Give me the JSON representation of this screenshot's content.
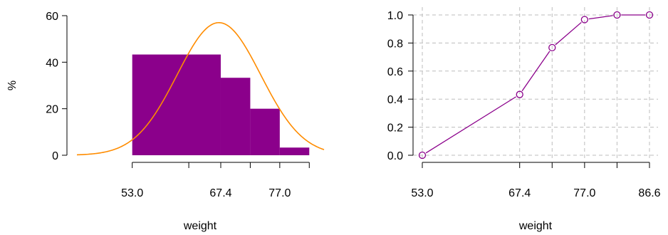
{
  "chart_data": [
    {
      "type": "histogram",
      "xlabel": "weight",
      "ylabel": "%",
      "ylim": [
        0,
        60
      ],
      "yticks": [
        0,
        20,
        40,
        60
      ],
      "xlim": [
        44.0,
        84.2
      ],
      "xtick_positions": [
        53.0,
        62.2,
        67.4,
        72.2,
        77.0,
        81.8
      ],
      "xtick_labels": [
        "53.0",
        "67.4",
        "77.0"
      ],
      "labeled_xticks": [
        53.0,
        67.4,
        77.0
      ],
      "bins": [
        {
          "from": 53.0,
          "to": 67.4,
          "value": 43.3
        },
        {
          "from": 67.4,
          "to": 72.2,
          "value": 33.3
        },
        {
          "from": 72.2,
          "to": 77.0,
          "value": 20.0
        },
        {
          "from": 77.0,
          "to": 81.8,
          "value": 3.3
        }
      ],
      "density_curve": {
        "mean": 67.1,
        "sd": 6.8,
        "peak": 57
      },
      "bar_color": "#8b008b",
      "curve_color": "#ff8c00"
    },
    {
      "type": "line",
      "xlabel": "weight",
      "ylabel": "",
      "ylim": [
        0.0,
        1.0
      ],
      "yticks": [
        "0.0",
        "0.2",
        "0.4",
        "0.6",
        "0.8",
        "1.0"
      ],
      "xlim": [
        53.0,
        86.6
      ],
      "xtick_positions": [
        53.0,
        67.4,
        72.2,
        77.0,
        81.8,
        86.6
      ],
      "xtick_labels": [
        "53.0",
        "67.4",
        "77.0",
        "86.6"
      ],
      "labeled_xticks": [
        53.0,
        67.4,
        77.0,
        86.6
      ],
      "x": [
        53.0,
        67.4,
        72.2,
        77.0,
        81.8,
        86.6
      ],
      "y": [
        0.0,
        0.433,
        0.767,
        0.967,
        1.0,
        1.0
      ],
      "grid": true,
      "color": "#8b008b"
    }
  ]
}
